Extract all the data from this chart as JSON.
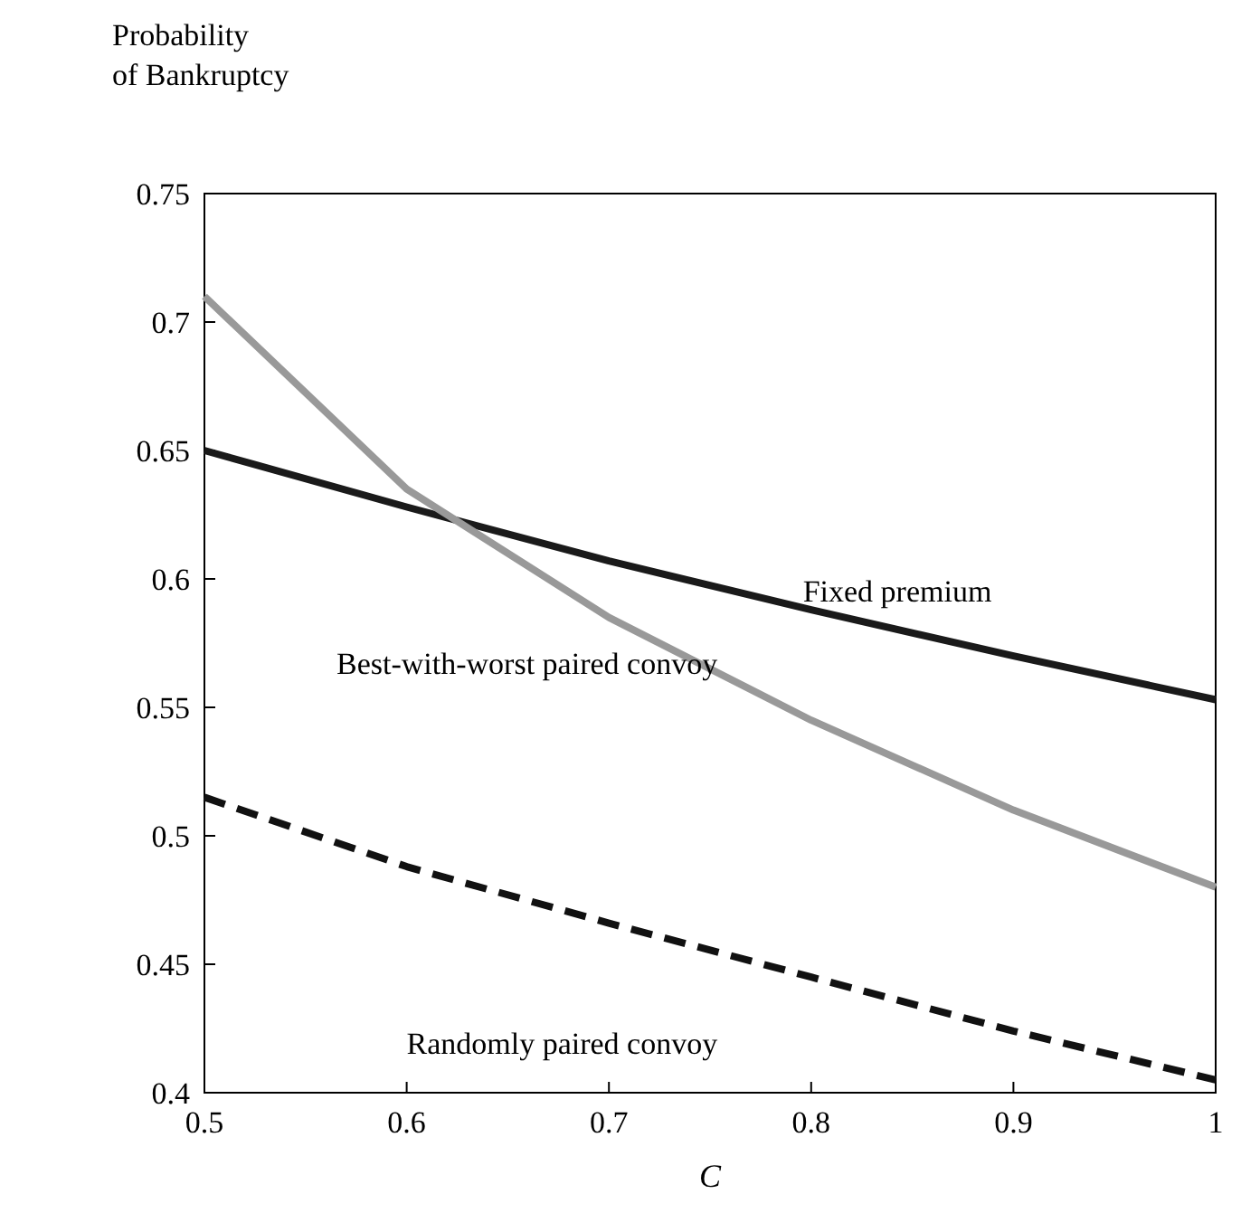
{
  "chart_data": {
    "type": "line",
    "xlabel": "C",
    "ylabel": "Probability of Bankruptcy",
    "x": [
      0.5,
      0.6,
      0.7,
      0.8,
      0.9,
      1
    ],
    "xlim": [
      0.5,
      1
    ],
    "xticks": [
      0.5,
      0.6,
      0.7,
      0.8,
      0.9,
      1
    ],
    "ylim": [
      0.4,
      0.75
    ],
    "yticks": [
      0.4,
      0.45,
      0.5,
      0.55,
      0.6,
      0.65,
      0.7,
      0.75
    ],
    "grid": false,
    "marker": "none",
    "series": [
      {
        "name": "Fixed premium",
        "color": "#1a1a1a",
        "values": [
          0.65,
          0.628,
          0.607,
          0.588,
          0.57,
          0.553
        ],
        "line_style": "solid"
      },
      {
        "name": "Best-with-worst paired convoy",
        "color": "#999999",
        "values": [
          0.71,
          0.635,
          0.585,
          0.545,
          0.51,
          0.48
        ],
        "line_style": "solid"
      },
      {
        "name": "Randomly paired convoy",
        "color": "#111111",
        "values": [
          0.515,
          0.488,
          0.466,
          0.445,
          0.424,
          0.405
        ],
        "line_style": "dashed"
      }
    ]
  }
}
